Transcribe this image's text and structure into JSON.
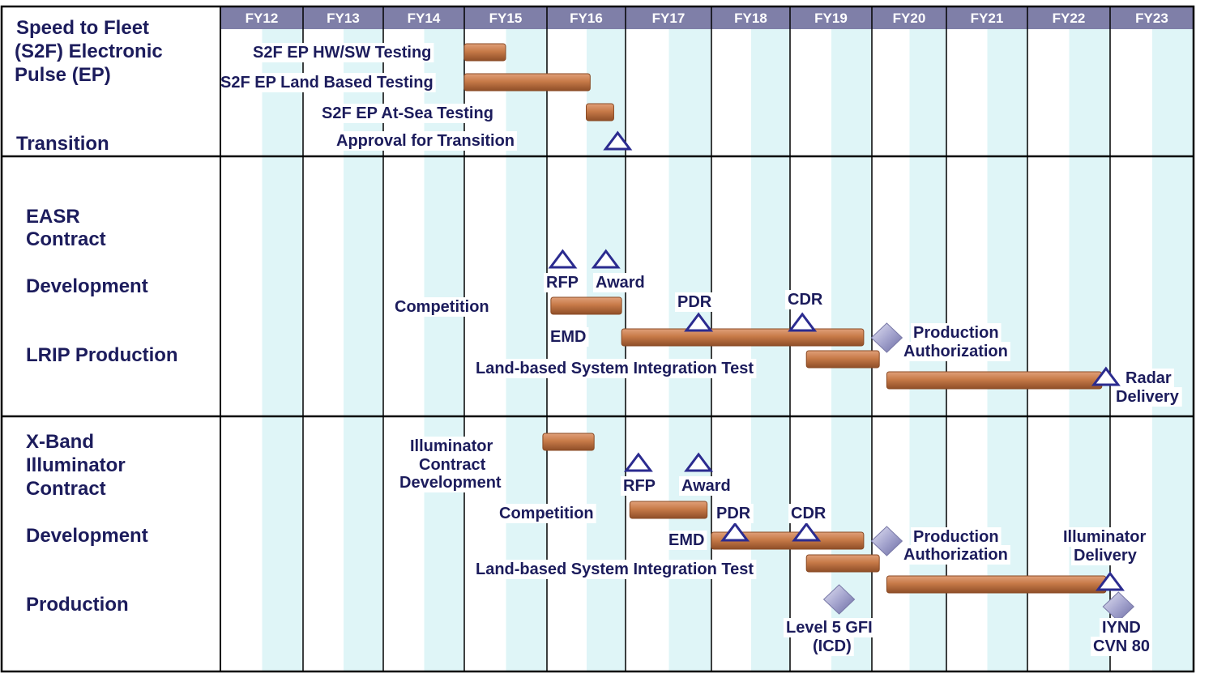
{
  "fiscal_years": [
    "FY12",
    "FY13",
    "FY14",
    "FY15",
    "FY16",
    "FY17",
    "FY18",
    "FY19",
    "FY20",
    "FY21",
    "FY22",
    "FY23"
  ],
  "colors": {
    "header_bg": "#7f7fa8",
    "stripe": "#dff5f7",
    "bar": "#c87a4a",
    "bar_dark": "#8a4a24",
    "milestone": "#2b2b8f",
    "diamond": "#9b9bc8",
    "text": "#1c1c5c",
    "border": "#000000"
  },
  "sections": [
    {
      "id": "s2f",
      "labels": [
        {
          "text": "Speed to Fleet",
          "key": "s2f-title-1"
        },
        {
          "text": "(S2F) Electronic",
          "key": "s2f-title-2"
        },
        {
          "text": "Pulse (EP)",
          "key": "s2f-title-3"
        },
        {
          "text": "Transition",
          "key": "s2f-transition"
        }
      ],
      "bars": [
        {
          "label": "S2F EP HW/SW Testing",
          "start": 2015.0,
          "end": 2015.5,
          "label_side": "left"
        },
        {
          "label": "S2F EP Land Based Testing",
          "start": 2015.0,
          "end": 2016.55,
          "label_side": "left"
        },
        {
          "label": "S2F EP At-Sea Testing",
          "start": 2016.5,
          "end": 2016.85,
          "label_side": "left"
        }
      ],
      "milestones": [
        {
          "label": "Approval for Transition",
          "date": 2016.9,
          "shape": "triangle",
          "label_side": "left"
        }
      ]
    },
    {
      "id": "easr",
      "labels": [
        {
          "text": "EASR",
          "key": "easr-title-1"
        },
        {
          "text": "Contract",
          "key": "easr-title-2"
        },
        {
          "text": "Development",
          "key": "easr-development"
        },
        {
          "text": "LRIP Production",
          "key": "easr-lrip"
        }
      ],
      "bars": [
        {
          "label": "Competition",
          "start": 2016.05,
          "end": 2016.95,
          "label_side": "left"
        },
        {
          "label": "EMD",
          "start": 2016.95,
          "end": 2019.9,
          "label_side": "left-below"
        },
        {
          "label": "Land-based System Integration Test",
          "start": 2019.2,
          "end": 2020.1,
          "label_side": "left"
        },
        {
          "label": "",
          "start": 2020.2,
          "end": 2022.9,
          "label_side": "none"
        }
      ],
      "milestones": [
        {
          "label": "RFP",
          "date": 2016.2,
          "shape": "triangle"
        },
        {
          "label": "Award",
          "date": 2016.75,
          "shape": "triangle"
        },
        {
          "label": "PDR",
          "date": 2017.85,
          "shape": "triangle"
        },
        {
          "label": "CDR",
          "date": 2019.15,
          "shape": "triangle"
        },
        {
          "label": "Production Authorization",
          "date": 2020.2,
          "shape": "diamond"
        },
        {
          "label": "Radar Delivery",
          "date": 2022.95,
          "shape": "triangle"
        }
      ]
    },
    {
      "id": "xband",
      "labels": [
        {
          "text": "X-Band",
          "key": "xband-title-1"
        },
        {
          "text": "Illuminator",
          "key": "xband-title-2"
        },
        {
          "text": "Contract",
          "key": "xband-title-3"
        },
        {
          "text": "Development",
          "key": "xband-development"
        },
        {
          "text": "Production",
          "key": "xband-production"
        }
      ],
      "bars": [
        {
          "label": "Illuminator Contract Development",
          "start": 2015.95,
          "end": 2016.6,
          "label_side": "left"
        },
        {
          "label": "Competition",
          "start": 2017.05,
          "end": 2017.95,
          "label_side": "left"
        },
        {
          "label": "EMD",
          "start": 2018.0,
          "end": 2019.9,
          "label_side": "left"
        },
        {
          "label": "Land-based System Integration Test",
          "start": 2019.2,
          "end": 2020.1,
          "label_side": "left"
        },
        {
          "label": "",
          "start": 2020.2,
          "end": 2022.95,
          "label_side": "none"
        }
      ],
      "milestones": [
        {
          "label": "RFP",
          "date": 2017.15,
          "shape": "triangle"
        },
        {
          "label": "Award",
          "date": 2017.85,
          "shape": "triangle"
        },
        {
          "label": "PDR",
          "date": 2018.3,
          "shape": "triangle"
        },
        {
          "label": "CDR",
          "date": 2019.2,
          "shape": "triangle"
        },
        {
          "label": "Production Authorization",
          "date": 2020.2,
          "shape": "diamond"
        },
        {
          "label": "Level 5 GFI (ICD)",
          "date": 2019.6,
          "shape": "diamond"
        },
        {
          "label": "Illuminator Delivery",
          "date": 2023.0,
          "shape": "triangle"
        },
        {
          "label": "IYND CVN 80",
          "date": 2023.1,
          "shape": "diamond"
        }
      ]
    }
  ],
  "annotations": {
    "s2f_hw": "S2F EP HW/SW Testing",
    "s2f_land": "S2F EP Land Based Testing",
    "s2f_sea": "S2F EP At-Sea Testing",
    "s2f_approval": "Approval for Transition",
    "easr_rfp": "RFP",
    "easr_award": "Award",
    "easr_competition": "Competition",
    "easr_pdr": "PDR",
    "easr_cdr": "CDR",
    "easr_emd": "EMD",
    "easr_prod_auth_1": "Production",
    "easr_prod_auth_2": "Authorization",
    "easr_lsit": "Land-based System Integration Test",
    "easr_radar_1": "Radar",
    "easr_radar_2": "Delivery",
    "x_illum_1": "Illuminator",
    "x_illum_2": "Contract",
    "x_illum_3": "Development",
    "x_rfp": "RFP",
    "x_award": "Award",
    "x_competition": "Competition",
    "x_pdr": "PDR",
    "x_cdr": "CDR",
    "x_emd": "EMD",
    "x_prod_auth_1": "Production",
    "x_prod_auth_2": "Authorization",
    "x_lsit": "Land-based System Integration Test",
    "x_delivery_1": "Illuminator",
    "x_delivery_2": "Delivery",
    "x_gfi_1": "Level 5 GFI",
    "x_gfi_2": "(ICD)",
    "x_iynd_1": "IYND",
    "x_iynd_2": "CVN 80"
  }
}
